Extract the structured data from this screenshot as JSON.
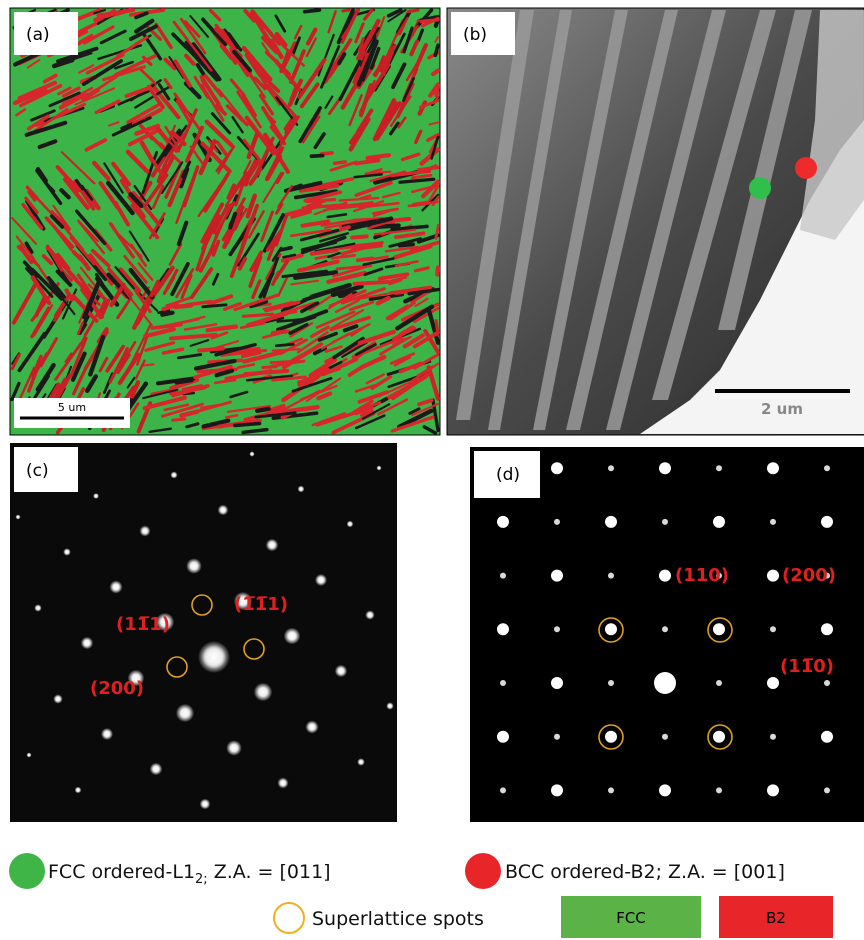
{
  "panels": {
    "a": {
      "label": "(a)",
      "scale_bar": "5 um"
    },
    "b": {
      "label": "(b)",
      "scale_bar": "2 um"
    },
    "c": {
      "label": "(c)",
      "indices": [
        "(11̅1)",
        "(1̅1̅1)",
        "(200)"
      ]
    },
    "d": {
      "label": "(d)",
      "indices": [
        "(110)",
        "(200)",
        "(11̅0)"
      ]
    }
  },
  "legend": {
    "fcc": {
      "text": "FCC ordered-L1",
      "subscript": "2;",
      "tail": " Z.A. = [011]"
    },
    "bcc": "BCC ordered-B2; Z.A. = [001]",
    "superlattice": "Superlattice spots",
    "fcc_box": "FCC",
    "b2_box": "B2"
  }
}
